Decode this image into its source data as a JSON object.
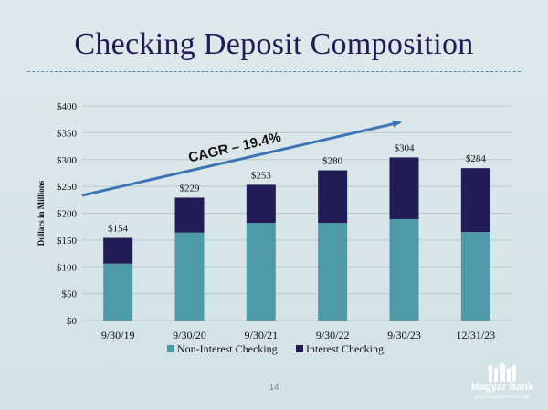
{
  "slide": {
    "title": "Checking Deposit Composition",
    "page_number": "14",
    "annotation": "CAGR – 19.4%"
  },
  "logo": {
    "name": "Magyar Bank",
    "tagline": "Simply Magnificent Since 1922"
  },
  "colors": {
    "non_interest": "#4e9aa8",
    "interest": "#231d57",
    "title": "#1f1c55",
    "arrow": "#3d75b3"
  },
  "chart_data": {
    "type": "bar",
    "stacked": true,
    "categories": [
      "9/30/19",
      "9/30/20",
      "9/30/21",
      "9/30/22",
      "9/30/23",
      "12/31/23"
    ],
    "series": [
      {
        "name": "Non-Interest Checking",
        "values": [
          106,
          164,
          182,
          182,
          189,
          165
        ]
      },
      {
        "name": "Interest Checking",
        "values": [
          48,
          65,
          71,
          98,
          115,
          119
        ]
      }
    ],
    "totals": [
      "$154",
      "$229",
      "$253",
      "$280",
      "$304",
      "$284"
    ],
    "ylabel": "Dollars in Millions",
    "xlabel": "",
    "ylim": [
      0,
      400
    ],
    "yticks": [
      0,
      50,
      100,
      150,
      200,
      250,
      300,
      350,
      400
    ],
    "ytick_labels": [
      "$0",
      "$50",
      "$100",
      "$150",
      "$200",
      "$250",
      "$300",
      "$350",
      "$400"
    ],
    "grid": true,
    "legend_position": "bottom"
  }
}
